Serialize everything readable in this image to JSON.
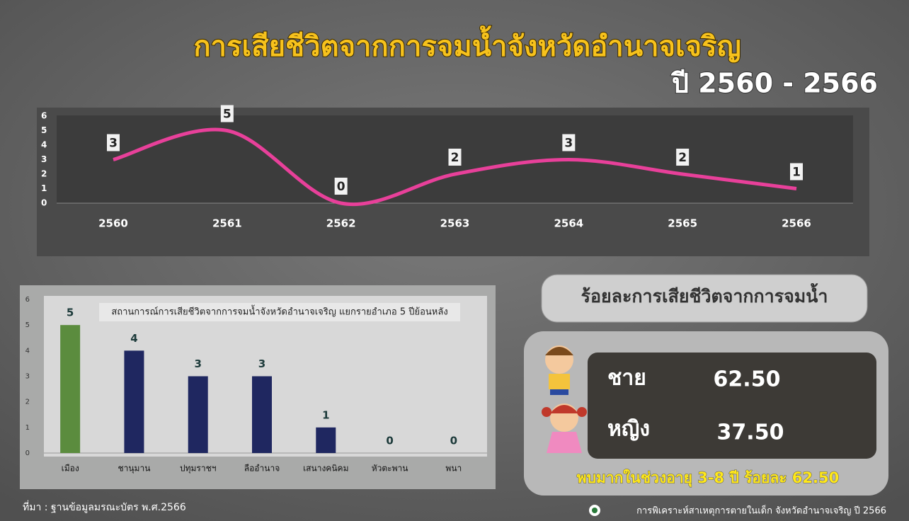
{
  "header": {
    "title": "การเสียชีวิตจากการจมน้ำจังหวัดอำนาจเจริญ",
    "subtitle": "ปี 2560 - 2566"
  },
  "chart_data": [
    {
      "type": "line",
      "categories": [
        "2560",
        "2561",
        "2562",
        "2563",
        "2564",
        "2565",
        "2566"
      ],
      "values": [
        3,
        5,
        0,
        2,
        3,
        2,
        1
      ],
      "color": "#e8409a",
      "ylim": [
        0,
        6
      ],
      "yticks": [
        0,
        1,
        2,
        3,
        4,
        5,
        6
      ]
    },
    {
      "type": "bar",
      "title": "สถานการณ์การเสียชีวิตจากการจมน้ำจังหวัดอำนาจเจริญ  แยกรายอำเภอ 5 ปีย้อนหลัง",
      "categories": [
        "เมือง",
        "ชานุมาน",
        "ปทุมราชฯ",
        "ลืออำนาจ",
        "เสนางคนิคม",
        "หัวตะพาน",
        "พนา"
      ],
      "values": [
        5,
        4,
        3,
        3,
        1,
        0,
        0
      ],
      "colors": [
        "#5b8c3e",
        "#1f2760",
        "#1f2760",
        "#1f2760",
        "#1f2760",
        "#1f2760",
        "#1f2760"
      ],
      "ylim": [
        0,
        6
      ],
      "yticks": [
        0,
        1,
        2,
        3,
        4,
        5,
        6
      ]
    }
  ],
  "panel": {
    "title": "ร้อยละการเสียชีวิตจากการจมน้ำ",
    "rows": [
      {
        "label": "ชาย",
        "value": "62.50"
      },
      {
        "label": "หญิง",
        "value": "37.50"
      }
    ],
    "note": "พบมากในช่วงอายุ 3-8 ปี  ร้อยละ 62.50"
  },
  "footer": {
    "source": "ที่มา : ฐานข้อมูลมรณะบัตร พ.ศ.2566",
    "credit": "การพิเคราะห์สาเหตุการตายในเด็ก จังหวัดอำนาจเจริญ  ปี 2566"
  }
}
